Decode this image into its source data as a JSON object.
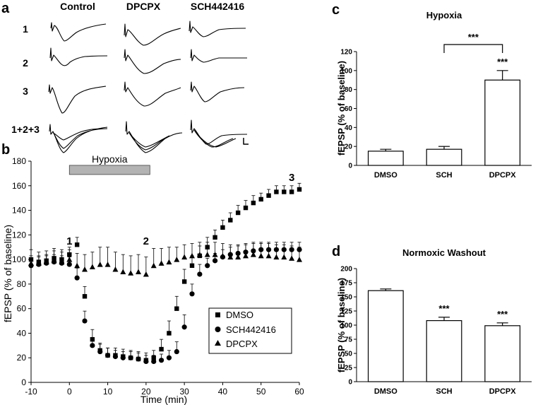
{
  "panels": {
    "a": "a",
    "b": "b",
    "c": "c",
    "d": "d"
  },
  "panel_a": {
    "columns": [
      "Control",
      "DPCPX",
      "SCH442416"
    ],
    "rows": [
      "1",
      "2",
      "3",
      "1+2+3"
    ]
  },
  "chart_data": [
    {
      "panel": "b",
      "type": "scatter",
      "title": "",
      "xlabel": "Time (min)",
      "ylabel": "fEPSP (% of baseline)",
      "xlim": [
        -10,
        60
      ],
      "ylim": [
        0,
        180
      ],
      "xticks": [
        "-10",
        "0",
        "10",
        "20",
        "30",
        "40",
        "50",
        "60"
      ],
      "yticks": [
        "0",
        "20",
        "40",
        "60",
        "80",
        "100",
        "120",
        "140",
        "160",
        "180"
      ],
      "hypoxia_bar": {
        "label": "Hypoxia",
        "start": 0,
        "end": 21
      },
      "annotations": [
        {
          "text": "1",
          "x": 0,
          "y": 112
        },
        {
          "text": "2",
          "x": 20,
          "y": 112
        },
        {
          "text": "3",
          "x": 58,
          "y": 164
        }
      ],
      "legend_position": "bottom-right",
      "series": [
        {
          "name": "DMSO",
          "marker": "square",
          "x": [
            -10,
            -8,
            -6,
            -4,
            -2,
            0,
            2,
            4,
            6,
            8,
            10,
            12,
            14,
            16,
            18,
            20,
            22,
            24,
            26,
            28,
            30,
            32,
            34,
            36,
            38,
            40,
            42,
            44,
            46,
            48,
            50,
            52,
            54,
            56,
            58,
            60
          ],
          "y": [
            100,
            98,
            99,
            101,
            100,
            104,
            112,
            70,
            35,
            26,
            22,
            22,
            21,
            20,
            19,
            18,
            20,
            27,
            40,
            60,
            82,
            95,
            103,
            110,
            118,
            126,
            132,
            138,
            142,
            146,
            149,
            152,
            155,
            155,
            155,
            157
          ],
          "err": [
            8,
            8,
            8,
            8,
            8,
            6,
            6,
            8,
            8,
            6,
            6,
            6,
            6,
            6,
            6,
            6,
            6,
            8,
            10,
            10,
            10,
            8,
            8,
            8,
            6,
            6,
            6,
            6,
            6,
            6,
            5,
            5,
            5,
            5,
            5,
            5
          ]
        },
        {
          "name": "SCH442416",
          "marker": "circle",
          "x": [
            -10,
            -8,
            -6,
            -4,
            -2,
            0,
            2,
            4,
            6,
            8,
            10,
            12,
            14,
            16,
            18,
            20,
            22,
            24,
            26,
            28,
            30,
            32,
            34,
            36,
            38,
            40,
            42,
            44,
            46,
            48,
            50,
            52,
            54,
            56,
            58,
            60
          ],
          "y": [
            95,
            96,
            97,
            98,
            97,
            96,
            85,
            50,
            30,
            25,
            22,
            21,
            20,
            20,
            19,
            17,
            17,
            18,
            20,
            25,
            45,
            72,
            88,
            95,
            99,
            102,
            104,
            105,
            106,
            107,
            108,
            108,
            108,
            108,
            108,
            108
          ],
          "err": [
            6,
            6,
            6,
            6,
            6,
            6,
            8,
            8,
            6,
            6,
            6,
            5,
            5,
            5,
            5,
            5,
            5,
            5,
            6,
            8,
            10,
            8,
            8,
            6,
            6,
            6,
            6,
            6,
            6,
            6,
            6,
            6,
            6,
            6,
            6,
            6
          ]
        },
        {
          "name": "DPCPX",
          "marker": "triangle",
          "x": [
            -10,
            -8,
            -6,
            -4,
            -2,
            0,
            2,
            4,
            6,
            8,
            10,
            12,
            14,
            16,
            18,
            20,
            22,
            24,
            26,
            28,
            30,
            32,
            34,
            36,
            38,
            40,
            42,
            44,
            46,
            48,
            50,
            52,
            54,
            56,
            58,
            60
          ],
          "y": [
            97,
            97,
            98,
            99,
            98,
            100,
            95,
            92,
            94,
            96,
            96,
            92,
            90,
            89,
            90,
            88,
            95,
            97,
            98,
            100,
            102,
            103,
            104,
            104,
            104,
            103,
            102,
            102,
            103,
            104,
            103,
            103,
            102,
            102,
            101,
            100
          ],
          "err": [
            6,
            6,
            6,
            8,
            8,
            8,
            10,
            12,
            12,
            14,
            14,
            14,
            14,
            14,
            14,
            14,
            14,
            12,
            12,
            10,
            10,
            10,
            10,
            10,
            10,
            10,
            10,
            10,
            10,
            10,
            10,
            10,
            10,
            10,
            10,
            10
          ]
        }
      ]
    },
    {
      "panel": "c",
      "type": "bar",
      "title": "Hypoxia",
      "xlabel": "",
      "ylabel": "fEPSP (% of baseline)",
      "ylim": [
        0,
        120
      ],
      "yticks": [
        "0",
        "20",
        "40",
        "60",
        "80",
        "100",
        "120"
      ],
      "categories": [
        "DMSO",
        "SCH",
        "DPCPX"
      ],
      "values": [
        15,
        17,
        90
      ],
      "errors": [
        2,
        3,
        10
      ],
      "significance": [
        {
          "category": "DPCPX",
          "label": "***"
        },
        {
          "between": [
            "SCH",
            "DPCPX"
          ],
          "label": "***"
        }
      ]
    },
    {
      "panel": "d",
      "type": "bar",
      "title": "Normoxic Washout",
      "xlabel": "",
      "ylabel": "fEPSP (% of baseline)",
      "ylim": [
        0,
        200
      ],
      "yticks": [
        "0",
        "25",
        "50",
        "75",
        "100",
        "125",
        "150",
        "175",
        "200"
      ],
      "categories": [
        "DMSO",
        "SCH",
        "DPCPX"
      ],
      "values": [
        161,
        108,
        99
      ],
      "errors": [
        3,
        6,
        5
      ],
      "significance": [
        {
          "category": "SCH",
          "label": "***"
        },
        {
          "category": "DPCPX",
          "label": "***"
        }
      ]
    }
  ]
}
